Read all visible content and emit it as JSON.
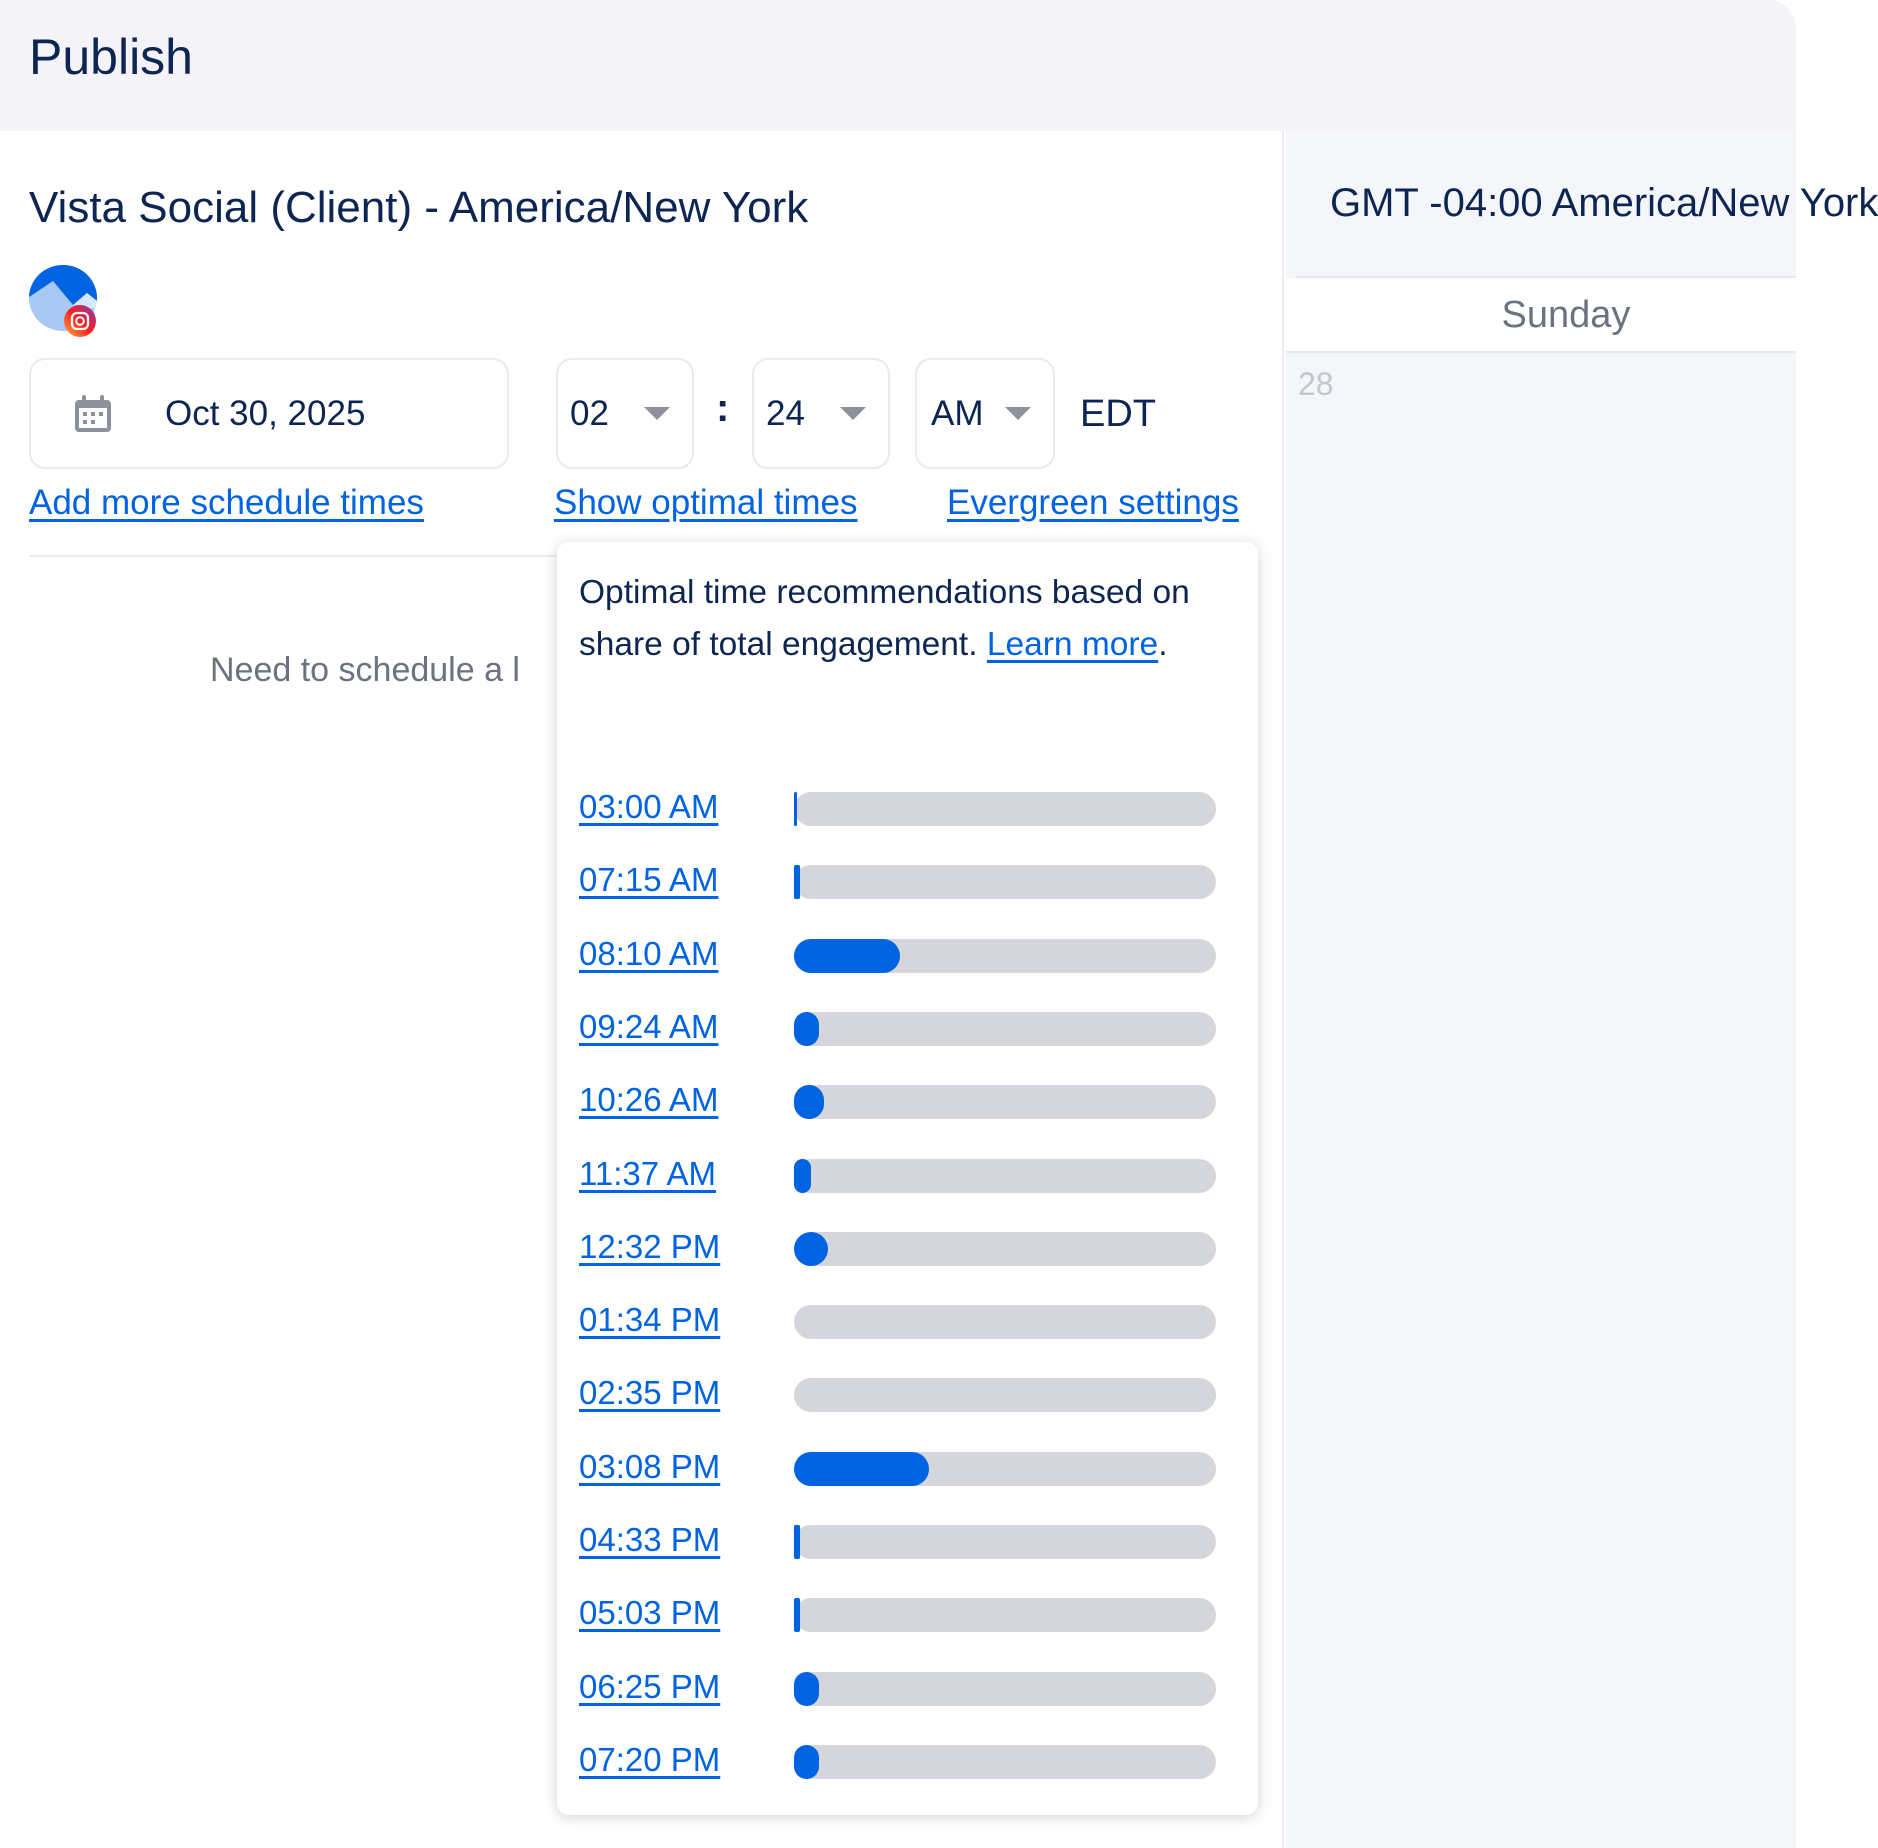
{
  "header": {
    "title": "Publish"
  },
  "left": {
    "subtitle": "Vista Social (Client) - America/New York",
    "date": "Oct 30, 2025",
    "hour": "02",
    "colon": ":",
    "minute": "24",
    "ampm": "AM",
    "timezone": "EDT",
    "links": {
      "add_more": "Add more schedule times",
      "show_optimal": "Show optimal times",
      "evergreen": "Evergreen settings"
    },
    "need_text": "Need to schedule a l"
  },
  "popup": {
    "description": "Optimal time recommendations based on share of total engagement.",
    "learn_more": "Learn more",
    "period": ".",
    "times": [
      {
        "label": "03:00 AM",
        "share_pct": 0.5
      },
      {
        "label": "07:15 AM",
        "share_pct": 1.5
      },
      {
        "label": "08:10 AM",
        "share_pct": 25
      },
      {
        "label": "09:24 AM",
        "share_pct": 6
      },
      {
        "label": "10:26 AM",
        "share_pct": 7
      },
      {
        "label": "11:37 AM",
        "share_pct": 4
      },
      {
        "label": "12:32 PM",
        "share_pct": 8
      },
      {
        "label": "01:34 PM",
        "share_pct": 0
      },
      {
        "label": "02:35 PM",
        "share_pct": 0
      },
      {
        "label": "03:08 PM",
        "share_pct": 32
      },
      {
        "label": "04:33 PM",
        "share_pct": 1.5
      },
      {
        "label": "05:03 PM",
        "share_pct": 1.5
      },
      {
        "label": "06:25 PM",
        "share_pct": 6
      },
      {
        "label": "07:20 PM",
        "share_pct": 6
      }
    ]
  },
  "calendar": {
    "timezone": "GMT -04:00 America/New York",
    "day": "Sunday",
    "date": "28"
  },
  "colors": {
    "accent": "#0063e1",
    "track": "#d4d6db",
    "text": "#0d2552"
  }
}
